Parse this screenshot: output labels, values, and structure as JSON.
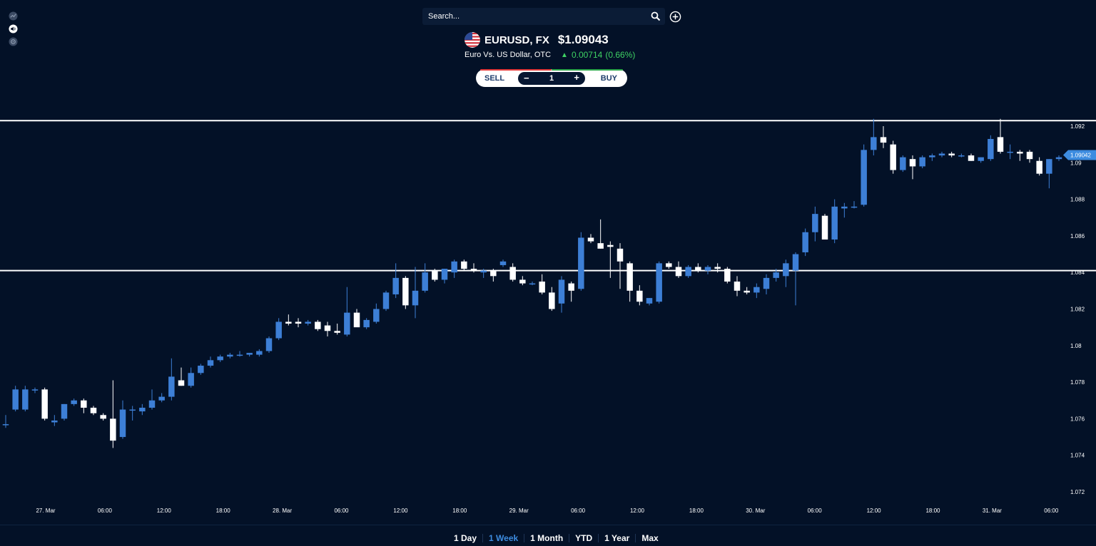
{
  "toolbar": {
    "tools": [
      {
        "icon": "trend-icon"
      },
      {
        "icon": "sound-icon"
      },
      {
        "icon": "settings-icon"
      }
    ]
  },
  "search": {
    "placeholder": "Search..."
  },
  "symbol": {
    "ticker": "EURUSD, FX",
    "price": "$1.09043",
    "description": "Euro Vs. US Dollar, OTC",
    "change": "0.00714",
    "change_pct": "(0.66%)",
    "flag_icon": "us-flag-icon"
  },
  "trade": {
    "sell_label": "SELL",
    "buy_label": "BUY",
    "minus_label": "−",
    "plus_label": "+",
    "quantity": "1"
  },
  "timeframes": [
    {
      "label": "1 Day",
      "active": false
    },
    {
      "label": "1 Week",
      "active": true
    },
    {
      "label": "1 Month",
      "active": false
    },
    {
      "label": "YTD",
      "active": false
    },
    {
      "label": "1 Year",
      "active": false
    },
    {
      "label": "Max",
      "active": false
    }
  ],
  "colors": {
    "background": "#031127",
    "up": "#3d7fd6",
    "down": "#ffffff",
    "positive": "#3ed163",
    "sell": "#e53b3b",
    "buy": "#2ea84b",
    "active_range": "#3d8ce0"
  },
  "chart_data": {
    "type": "candlestick",
    "ylim": [
      1.071,
      1.0925
    ],
    "y_ticks": [
      "1.092",
      "1.09",
      "1.088",
      "1.086",
      "1.084",
      "1.082",
      "1.08",
      "1.078",
      "1.076",
      "1.074",
      "1.072"
    ],
    "y_tick_values": [
      1.092,
      1.09,
      1.088,
      1.086,
      1.084,
      1.082,
      1.08,
      1.078,
      1.076,
      1.074,
      1.072
    ],
    "x_labels": [
      "27. Mar",
      "06:00",
      "12:00",
      "18:00",
      "28. Mar",
      "06:00",
      "12:00",
      "18:00",
      "29. Mar",
      "06:00",
      "12:00",
      "18:00",
      "30. Mar",
      "06:00",
      "12:00",
      "18:00",
      "31. Mar",
      "06:00"
    ],
    "current_price_label": "1.09042",
    "current_price": 1.09042,
    "horizontal_lines": [
      1.0923,
      1.0841
    ],
    "candles": [
      {
        "o": 1.0757,
        "h": 1.0762,
        "l": 1.0755,
        "c": 1.0757
      },
      {
        "o": 1.0765,
        "h": 1.0778,
        "l": 1.0764,
        "c": 1.0776
      },
      {
        "o": 1.0765,
        "h": 1.0778,
        "l": 1.0764,
        "c": 1.0776
      },
      {
        "o": 1.0776,
        "h": 1.0777,
        "l": 1.0774,
        "c": 1.0776
      },
      {
        "o": 1.0776,
        "h": 1.0777,
        "l": 1.0759,
        "c": 1.076
      },
      {
        "o": 1.0758,
        "h": 1.0762,
        "l": 1.0756,
        "c": 1.0759
      },
      {
        "o": 1.076,
        "h": 1.0768,
        "l": 1.0759,
        "c": 1.0768
      },
      {
        "o": 1.0768,
        "h": 1.0771,
        "l": 1.0767,
        "c": 1.077
      },
      {
        "o": 1.077,
        "h": 1.0771,
        "l": 1.0763,
        "c": 1.0766
      },
      {
        "o": 1.0766,
        "h": 1.0767,
        "l": 1.0762,
        "c": 1.0763
      },
      {
        "o": 1.0762,
        "h": 1.0763,
        "l": 1.0759,
        "c": 1.076
      },
      {
        "o": 1.076,
        "h": 1.0781,
        "l": 1.0744,
        "c": 1.0748
      },
      {
        "o": 1.075,
        "h": 1.077,
        "l": 1.0749,
        "c": 1.0765
      },
      {
        "o": 1.0765,
        "h": 1.0767,
        "l": 1.0759,
        "c": 1.0765
      },
      {
        "o": 1.0764,
        "h": 1.0768,
        "l": 1.0762,
        "c": 1.0766
      },
      {
        "o": 1.0766,
        "h": 1.0776,
        "l": 1.0765,
        "c": 1.077
      },
      {
        "o": 1.077,
        "h": 1.0774,
        "l": 1.0769,
        "c": 1.0772
      },
      {
        "o": 1.0772,
        "h": 1.0793,
        "l": 1.077,
        "c": 1.0783
      },
      {
        "o": 1.0781,
        "h": 1.0788,
        "l": 1.0778,
        "c": 1.0778
      },
      {
        "o": 1.0778,
        "h": 1.0788,
        "l": 1.0777,
        "c": 1.0785
      },
      {
        "o": 1.0785,
        "h": 1.079,
        "l": 1.0784,
        "c": 1.0789
      },
      {
        "o": 1.0789,
        "h": 1.0794,
        "l": 1.0788,
        "c": 1.0792
      },
      {
        "o": 1.0792,
        "h": 1.0795,
        "l": 1.0791,
        "c": 1.0794
      },
      {
        "o": 1.0794,
        "h": 1.0796,
        "l": 1.0793,
        "c": 1.0795
      },
      {
        "o": 1.0795,
        "h": 1.0797,
        "l": 1.0794,
        "c": 1.0795
      },
      {
        "o": 1.0795,
        "h": 1.0796,
        "l": 1.0794,
        "c": 1.0796
      },
      {
        "o": 1.0795,
        "h": 1.0798,
        "l": 1.0794,
        "c": 1.0797
      },
      {
        "o": 1.0797,
        "h": 1.0805,
        "l": 1.0796,
        "c": 1.0804
      },
      {
        "o": 1.0804,
        "h": 1.0815,
        "l": 1.0803,
        "c": 1.0813
      },
      {
        "o": 1.0813,
        "h": 1.0817,
        "l": 1.0811,
        "c": 1.0812
      },
      {
        "o": 1.0813,
        "h": 1.0815,
        "l": 1.081,
        "c": 1.0812
      },
      {
        "o": 1.0812,
        "h": 1.0814,
        "l": 1.0811,
        "c": 1.0813
      },
      {
        "o": 1.0813,
        "h": 1.0814,
        "l": 1.0808,
        "c": 1.0809
      },
      {
        "o": 1.0811,
        "h": 1.0813,
        "l": 1.0805,
        "c": 1.0808
      },
      {
        "o": 1.0808,
        "h": 1.0812,
        "l": 1.0806,
        "c": 1.0807
      },
      {
        "o": 1.0806,
        "h": 1.0832,
        "l": 1.0805,
        "c": 1.0818
      },
      {
        "o": 1.0818,
        "h": 1.082,
        "l": 1.0811,
        "c": 1.081
      },
      {
        "o": 1.081,
        "h": 1.0815,
        "l": 1.0809,
        "c": 1.0814
      },
      {
        "o": 1.0813,
        "h": 1.0823,
        "l": 1.0812,
        "c": 1.082
      },
      {
        "o": 1.082,
        "h": 1.083,
        "l": 1.0819,
        "c": 1.0829
      },
      {
        "o": 1.0828,
        "h": 1.0845,
        "l": 1.0826,
        "c": 1.0837
      },
      {
        "o": 1.0837,
        "h": 1.0838,
        "l": 1.082,
        "c": 1.0822
      },
      {
        "o": 1.0822,
        "h": 1.0843,
        "l": 1.0815,
        "c": 1.083
      },
      {
        "o": 1.083,
        "h": 1.0845,
        "l": 1.0829,
        "c": 1.084
      },
      {
        "o": 1.0841,
        "h": 1.0842,
        "l": 1.0835,
        "c": 1.0836
      },
      {
        "o": 1.0836,
        "h": 1.0842,
        "l": 1.0834,
        "c": 1.0842
      },
      {
        "o": 1.084,
        "h": 1.0847,
        "l": 1.0837,
        "c": 1.0846
      },
      {
        "o": 1.0846,
        "h": 1.0847,
        "l": 1.0841,
        "c": 1.0842
      },
      {
        "o": 1.0842,
        "h": 1.0845,
        "l": 1.084,
        "c": 1.0841
      },
      {
        "o": 1.084,
        "h": 1.0842,
        "l": 1.0837,
        "c": 1.0841
      },
      {
        "o": 1.0841,
        "h": 1.0842,
        "l": 1.0835,
        "c": 1.0838
      },
      {
        "o": 1.0844,
        "h": 1.0847,
        "l": 1.0843,
        "c": 1.0846
      },
      {
        "o": 1.0843,
        "h": 1.0845,
        "l": 1.0835,
        "c": 1.0836
      },
      {
        "o": 1.0836,
        "h": 1.0838,
        "l": 1.0833,
        "c": 1.0834
      },
      {
        "o": 1.0834,
        "h": 1.0835,
        "l": 1.0833,
        "c": 1.0834
      },
      {
        "o": 1.0835,
        "h": 1.0839,
        "l": 1.0828,
        "c": 1.0829
      },
      {
        "o": 1.0829,
        "h": 1.0832,
        "l": 1.0819,
        "c": 1.082
      },
      {
        "o": 1.0823,
        "h": 1.0838,
        "l": 1.0818,
        "c": 1.0836
      },
      {
        "o": 1.0834,
        "h": 1.0835,
        "l": 1.0824,
        "c": 1.083
      },
      {
        "o": 1.0831,
        "h": 1.0862,
        "l": 1.083,
        "c": 1.0859
      },
      {
        "o": 1.0859,
        "h": 1.0861,
        "l": 1.0856,
        "c": 1.0857
      },
      {
        "o": 1.0856,
        "h": 1.0869,
        "l": 1.0853,
        "c": 1.0853
      },
      {
        "o": 1.0855,
        "h": 1.0857,
        "l": 1.0837,
        "c": 1.0854
      },
      {
        "o": 1.0853,
        "h": 1.0856,
        "l": 1.0831,
        "c": 1.0846
      },
      {
        "o": 1.0845,
        "h": 1.0846,
        "l": 1.0824,
        "c": 1.083
      },
      {
        "o": 1.083,
        "h": 1.0833,
        "l": 1.0822,
        "c": 1.0824
      },
      {
        "o": 1.0823,
        "h": 1.0826,
        "l": 1.0822,
        "c": 1.0826
      },
      {
        "o": 1.0824,
        "h": 1.0846,
        "l": 1.0823,
        "c": 1.0845
      },
      {
        "o": 1.0845,
        "h": 1.0846,
        "l": 1.0842,
        "c": 1.0843
      },
      {
        "o": 1.0843,
        "h": 1.0846,
        "l": 1.0837,
        "c": 1.0838
      },
      {
        "o": 1.0838,
        "h": 1.0844,
        "l": 1.0837,
        "c": 1.0843
      },
      {
        "o": 1.0843,
        "h": 1.0845,
        "l": 1.084,
        "c": 1.0841
      },
      {
        "o": 1.0841,
        "h": 1.0844,
        "l": 1.0839,
        "c": 1.0843
      },
      {
        "o": 1.0843,
        "h": 1.0845,
        "l": 1.084,
        "c": 1.0842
      },
      {
        "o": 1.0842,
        "h": 1.0843,
        "l": 1.0834,
        "c": 1.0835
      },
      {
        "o": 1.0835,
        "h": 1.0838,
        "l": 1.0827,
        "c": 1.083
      },
      {
        "o": 1.083,
        "h": 1.0832,
        "l": 1.0828,
        "c": 1.0829
      },
      {
        "o": 1.0829,
        "h": 1.0834,
        "l": 1.0826,
        "c": 1.0832
      },
      {
        "o": 1.0831,
        "h": 1.0839,
        "l": 1.0828,
        "c": 1.0837
      },
      {
        "o": 1.0837,
        "h": 1.0842,
        "l": 1.0835,
        "c": 1.084
      },
      {
        "o": 1.0838,
        "h": 1.0847,
        "l": 1.0832,
        "c": 1.0845
      },
      {
        "o": 1.0841,
        "h": 1.0851,
        "l": 1.0822,
        "c": 1.085
      },
      {
        "o": 1.0851,
        "h": 1.0864,
        "l": 1.0849,
        "c": 1.0862
      },
      {
        "o": 1.0862,
        "h": 1.0876,
        "l": 1.0857,
        "c": 1.0872
      },
      {
        "o": 1.0871,
        "h": 1.0872,
        "l": 1.0858,
        "c": 1.0858
      },
      {
        "o": 1.0858,
        "h": 1.088,
        "l": 1.0856,
        "c": 1.0876
      },
      {
        "o": 1.0875,
        "h": 1.0878,
        "l": 1.087,
        "c": 1.0876
      },
      {
        "o": 1.0876,
        "h": 1.0879,
        "l": 1.0875,
        "c": 1.0876
      },
      {
        "o": 1.0877,
        "h": 1.091,
        "l": 1.0876,
        "c": 1.0907
      },
      {
        "o": 1.0907,
        "h": 1.0924,
        "l": 1.0904,
        "c": 1.0914
      },
      {
        "o": 1.0914,
        "h": 1.092,
        "l": 1.0908,
        "c": 1.0911
      },
      {
        "o": 1.091,
        "h": 1.0912,
        "l": 1.0894,
        "c": 1.0896
      },
      {
        "o": 1.0896,
        "h": 1.0904,
        "l": 1.0895,
        "c": 1.0903
      },
      {
        "o": 1.0902,
        "h": 1.0904,
        "l": 1.0891,
        "c": 1.0898
      },
      {
        "o": 1.0898,
        "h": 1.0904,
        "l": 1.0897,
        "c": 1.0903
      },
      {
        "o": 1.0903,
        "h": 1.0905,
        "l": 1.0901,
        "c": 1.0904
      },
      {
        "o": 1.0904,
        "h": 1.0906,
        "l": 1.0903,
        "c": 1.0905
      },
      {
        "o": 1.0905,
        "h": 1.0906,
        "l": 1.0903,
        "c": 1.0904
      },
      {
        "o": 1.0904,
        "h": 1.0905,
        "l": 1.0903,
        "c": 1.0904
      },
      {
        "o": 1.0904,
        "h": 1.0905,
        "l": 1.0901,
        "c": 1.0901
      },
      {
        "o": 1.0901,
        "h": 1.0903,
        "l": 1.09,
        "c": 1.0903
      },
      {
        "o": 1.0902,
        "h": 1.0915,
        "l": 1.0901,
        "c": 1.0913
      },
      {
        "o": 1.0914,
        "h": 1.0924,
        "l": 1.0905,
        "c": 1.0906
      },
      {
        "o": 1.0906,
        "h": 1.091,
        "l": 1.0902,
        "c": 1.0906
      },
      {
        "o": 1.0906,
        "h": 1.0907,
        "l": 1.0901,
        "c": 1.0905
      },
      {
        "o": 1.0906,
        "h": 1.0907,
        "l": 1.09,
        "c": 1.0902
      },
      {
        "o": 1.0901,
        "h": 1.0903,
        "l": 1.0893,
        "c": 1.0894
      },
      {
        "o": 1.0894,
        "h": 1.0902,
        "l": 1.0886,
        "c": 1.0902
      },
      {
        "o": 1.0902,
        "h": 1.0904,
        "l": 1.0901,
        "c": 1.0903
      }
    ]
  }
}
